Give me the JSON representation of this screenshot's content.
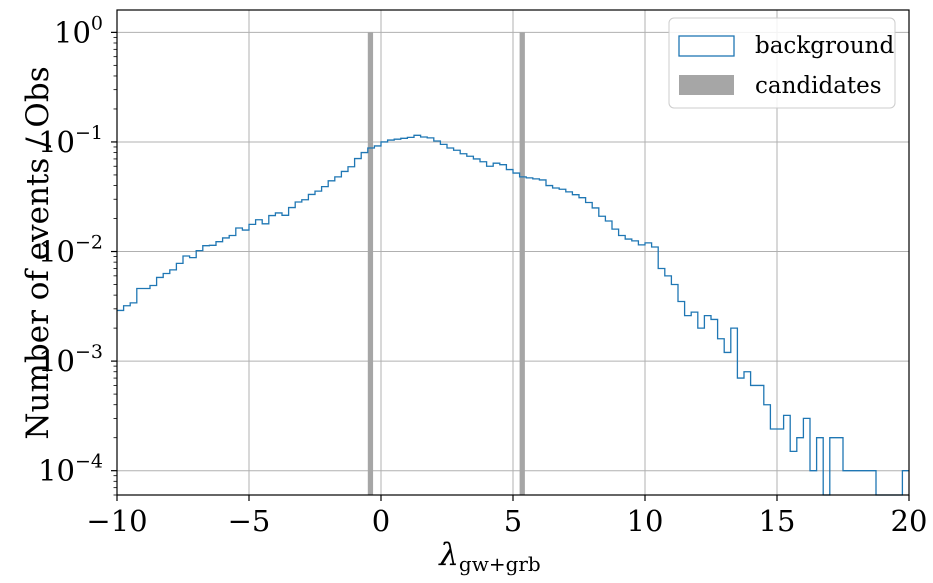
{
  "chart_data": {
    "type": "histogram",
    "xlabel": "λ",
    "xlabel_subscript": "gw+grb",
    "ylabel": "Number of events / Obs",
    "xlim": [
      -10,
      20
    ],
    "ylim": [
      6e-05,
      1.6
    ],
    "yscale": "log",
    "grid": true,
    "legend_position": "top-right",
    "x_ticks": [
      {
        "value": -10,
        "label": "−10"
      },
      {
        "value": -5,
        "label": "−5"
      },
      {
        "value": 0,
        "label": "0"
      },
      {
        "value": 5,
        "label": "5"
      },
      {
        "value": 10,
        "label": "10"
      },
      {
        "value": 15,
        "label": "15"
      },
      {
        "value": 20,
        "label": "20"
      }
    ],
    "y_ticks": [
      {
        "value": 1,
        "base": "10",
        "exp": "0"
      },
      {
        "value": 0.1,
        "base": "10",
        "exp": "−1"
      },
      {
        "value": 0.01,
        "base": "10",
        "exp": "−2"
      },
      {
        "value": 0.001,
        "base": "10",
        "exp": "−3"
      },
      {
        "value": 0.0001,
        "base": "10",
        "exp": "−4"
      }
    ],
    "series": [
      {
        "name": "background",
        "kind": "step-histogram",
        "color": "#1f77b4",
        "bin_width": 0.25,
        "bin_start": -10,
        "values": [
          0.0029,
          0.0032,
          0.0034,
          0.0046,
          0.0046,
          0.0049,
          0.0058,
          0.0063,
          0.0068,
          0.0078,
          0.0091,
          0.0088,
          0.0102,
          0.0113,
          0.0114,
          0.0123,
          0.0133,
          0.014,
          0.0164,
          0.0157,
          0.0177,
          0.0195,
          0.0179,
          0.0213,
          0.0225,
          0.0214,
          0.0252,
          0.0283,
          0.0297,
          0.0332,
          0.0356,
          0.0391,
          0.0442,
          0.048,
          0.0538,
          0.0594,
          0.0705,
          0.08,
          0.088,
          0.092,
          0.1,
          0.104,
          0.106,
          0.108,
          0.11,
          0.115,
          0.111,
          0.109,
          0.102,
          0.095,
          0.088,
          0.084,
          0.078,
          0.074,
          0.07,
          0.066,
          0.06,
          0.064,
          0.062,
          0.056,
          0.052,
          0.048,
          0.047,
          0.046,
          0.045,
          0.04,
          0.038,
          0.037,
          0.035,
          0.033,
          0.031,
          0.028,
          0.025,
          0.021,
          0.019,
          0.016,
          0.014,
          0.013,
          0.0125,
          0.0115,
          0.012,
          0.011,
          0.007,
          0.006,
          0.005,
          0.0035,
          0.0026,
          0.0028,
          0.002,
          0.0026,
          0.0024,
          0.0016,
          0.0012,
          0.002,
          0.0007,
          0.0008,
          0.0006,
          0.0006,
          0.0004,
          0.00024,
          0.00024,
          0.00032,
          0.00015,
          0.0002,
          0.0003,
          0.0001,
          0.0002,
          6e-05,
          0.0002,
          0.0002,
          0.0001,
          0.0001,
          0.0001,
          0.0001,
          0.0001,
          6e-05,
          6e-05,
          6e-05,
          6e-05,
          0.0001,
          6e-05,
          6e-05,
          6e-05,
          6e-05,
          6e-05,
          0.0001,
          6e-05
        ]
      },
      {
        "name": "candidates",
        "kind": "bars",
        "color": "#a6a6a6",
        "bars": [
          {
            "x0": -0.5,
            "x1": -0.3,
            "value": 1.0
          },
          {
            "x0": 5.25,
            "x1": 5.45,
            "value": 1.0
          }
        ]
      }
    ]
  }
}
